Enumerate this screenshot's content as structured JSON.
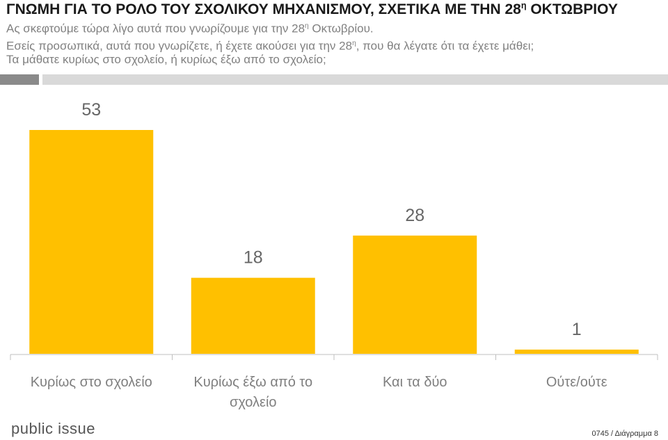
{
  "header": {
    "title": "ΓΝΩΜΗ ΓΙΑ ΤΟ ΡΟΛΟ ΤΟΥ ΣΧΟΛΙΚΟΥ ΜΗΧΑΝΙΣΜΟΥ, ΣΧΕΤΙΚΑ ΜΕ ΤΗΝ 28",
    "title_sup": "η",
    "title_end": " ΟΚΤΩΒΡΙΟΥ",
    "subtitle1": "Ας σκεφτούμε τώρα λίγο αυτά  που γνωρίζουμε για την 28",
    "subtitle1_sup": "η",
    "subtitle1_end": " Οκτωβρίου.",
    "subtitle2": "Εσείς προσωπικά, αυτά που γνωρίζετε, ή έχετε ακούσει για την 28",
    "subtitle2_sup": "η",
    "subtitle2_end": ", που θα λέγατε ότι τα έχετε μάθει;",
    "subtitle3": "Τα μάθατε κυρίως στο σχολείο, ή κυρίως έξω από το σχολείο;"
  },
  "footer": {
    "logo": "public issue",
    "note": "0745 / Διάγραμμα 8"
  },
  "chart_data": {
    "type": "bar",
    "categories": [
      [
        "Κυρίως στο σχολείο"
      ],
      [
        "Κυρίως έξω από το",
        "σχολείο"
      ],
      [
        "Και τα δύο"
      ],
      [
        "Ούτε/ούτε"
      ]
    ],
    "values": [
      53,
      18,
      28,
      1
    ],
    "bar_color": "#FFC000",
    "ylim": [
      0,
      60
    ],
    "grid": false,
    "legend": "none"
  }
}
